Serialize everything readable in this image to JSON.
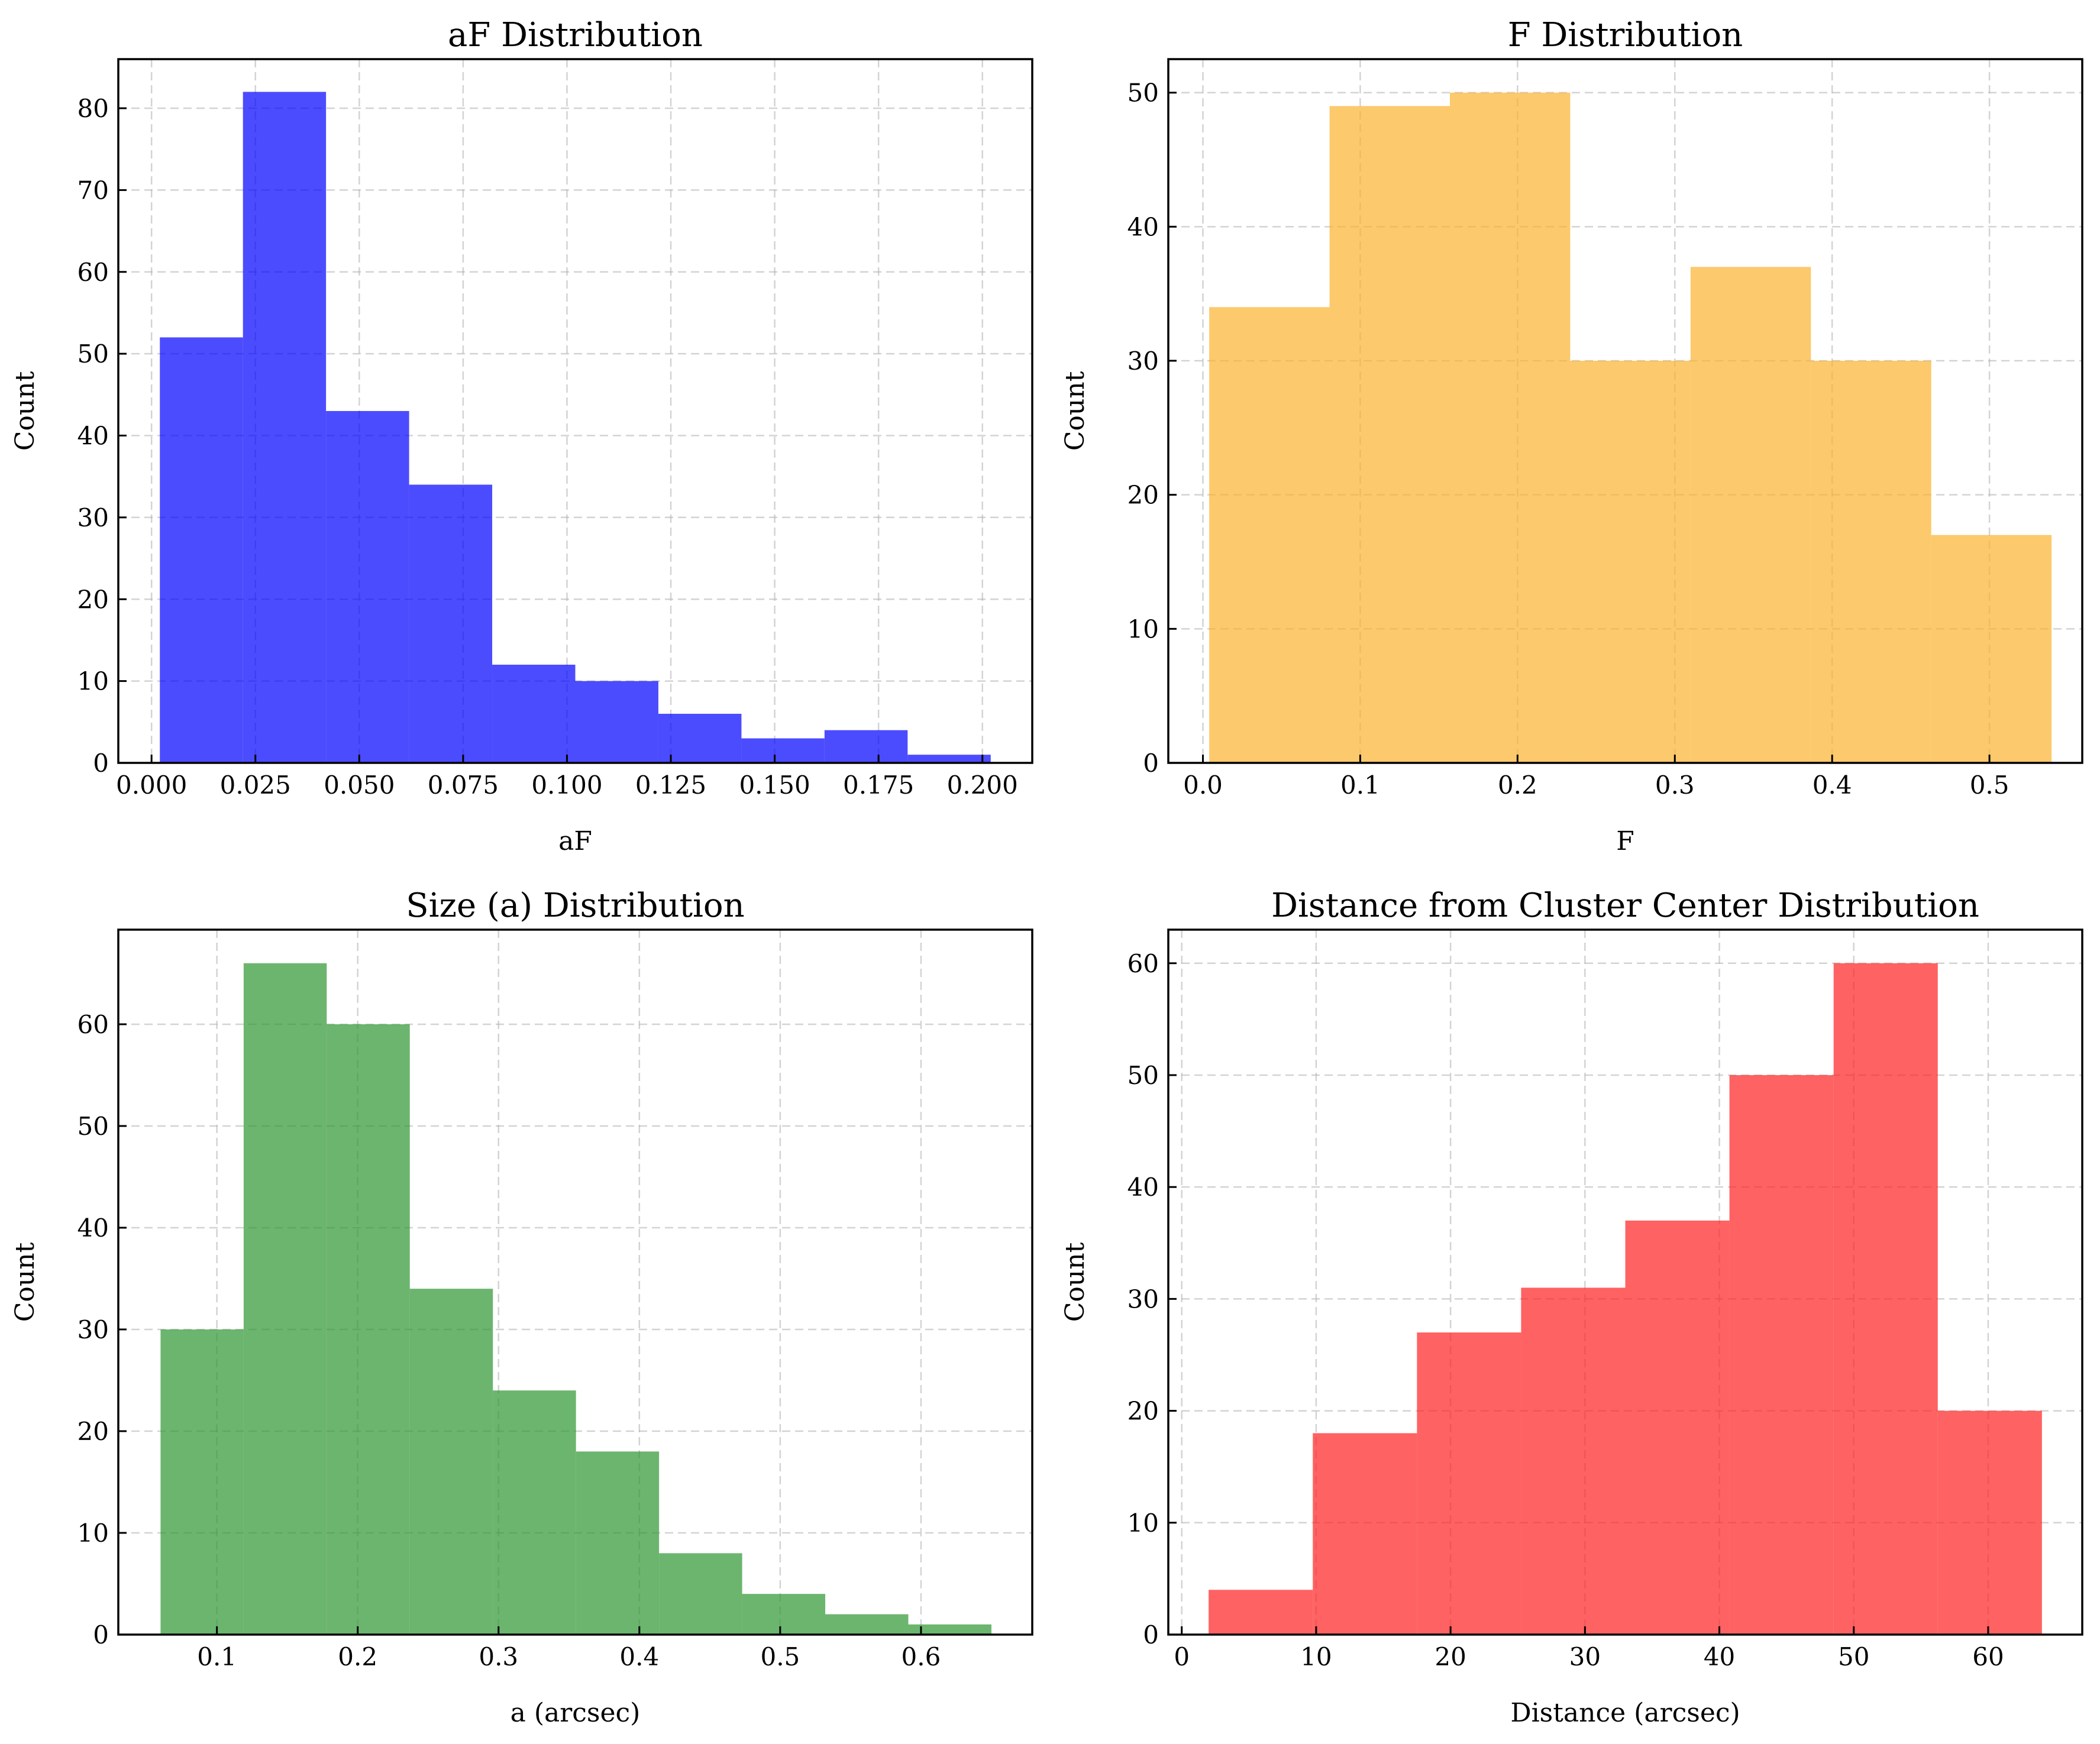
{
  "chart_data": [
    {
      "type": "bar",
      "title": "aF Distribution",
      "xlabel": "aF",
      "ylabel": "Count",
      "color": "#0000ff",
      "bin_edges": [
        0.002,
        0.022,
        0.042,
        0.062,
        0.082,
        0.102,
        0.122,
        0.142,
        0.162,
        0.182,
        0.202
      ],
      "values": [
        52,
        82,
        43,
        34,
        12,
        10,
        6,
        3,
        4,
        1
      ],
      "xlim": [
        -0.008,
        0.212
      ],
      "ylim": [
        0,
        86
      ],
      "xticks": [
        0.0,
        0.025,
        0.05,
        0.075,
        0.1,
        0.125,
        0.15,
        0.175,
        0.2
      ],
      "xtick_labels": [
        "0.000",
        "0.025",
        "0.050",
        "0.075",
        "0.100",
        "0.125",
        "0.150",
        "0.175",
        "0.200"
      ],
      "yticks": [
        0,
        10,
        20,
        30,
        40,
        50,
        60,
        70,
        80
      ],
      "ytick_labels": [
        "0",
        "10",
        "20",
        "30",
        "40",
        "50",
        "60",
        "70",
        "80"
      ],
      "grid": true
    },
    {
      "type": "bar",
      "title": "F Distribution",
      "xlabel": "F",
      "ylabel": "Count",
      "color": "#fbb22e",
      "bin_edges": [
        0.004,
        0.0805,
        0.157,
        0.2335,
        0.31,
        0.3865,
        0.463,
        0.5395
      ],
      "values": [
        34,
        49,
        50,
        30,
        37,
        30,
        17
      ],
      "xlim": [
        -0.022,
        0.559
      ],
      "ylim": [
        0,
        52.5
      ],
      "xticks": [
        0.0,
        0.1,
        0.2,
        0.3,
        0.4,
        0.5
      ],
      "xtick_labels": [
        "0.0",
        "0.1",
        "0.2",
        "0.3",
        "0.4",
        "0.5"
      ],
      "yticks": [
        0,
        10,
        20,
        30,
        40,
        50
      ],
      "ytick_labels": [
        "0",
        "10",
        "20",
        "30",
        "40",
        "50"
      ],
      "grid": true
    },
    {
      "type": "bar",
      "title": "Size (a) Distribution",
      "xlabel": "a (arcsec)",
      "ylabel": "Count",
      "color": "#2e9630",
      "bin_edges": [
        0.06,
        0.119,
        0.178,
        0.237,
        0.296,
        0.355,
        0.414,
        0.473,
        0.532,
        0.591,
        0.65
      ],
      "values": [
        30,
        66,
        60,
        34,
        24,
        18,
        8,
        4,
        2,
        1
      ],
      "xlim": [
        0.03,
        0.679
      ],
      "ylim": [
        0,
        69.3
      ],
      "xticks": [
        0.1,
        0.2,
        0.3,
        0.4,
        0.5,
        0.6
      ],
      "xtick_labels": [
        "0.1",
        "0.2",
        "0.3",
        "0.4",
        "0.5",
        "0.6"
      ],
      "yticks": [
        0,
        10,
        20,
        30,
        40,
        50,
        60
      ],
      "ytick_labels": [
        "0",
        "10",
        "20",
        "30",
        "40",
        "50",
        "60"
      ],
      "grid": true
    },
    {
      "type": "bar",
      "title": "Distance from Cluster Center Distribution",
      "xlabel": "Distance (arcsec)",
      "ylabel": "Count",
      "color": "#ff2020",
      "bin_edges": [
        2,
        9.75,
        17.5,
        25.25,
        33,
        40.75,
        48.5,
        56.25,
        64
      ],
      "values": [
        4,
        18,
        27,
        31,
        37,
        50,
        60,
        20
      ],
      "xlim": [
        -1.0,
        67.0
      ],
      "ylim": [
        0,
        63
      ],
      "xticks": [
        0,
        10,
        20,
        30,
        40,
        50,
        60
      ],
      "xtick_labels": [
        "0",
        "10",
        "20",
        "30",
        "40",
        "50",
        "60"
      ],
      "yticks": [
        0,
        10,
        20,
        30,
        40,
        50,
        60
      ],
      "ytick_labels": [
        "0",
        "10",
        "20",
        "30",
        "40",
        "50",
        "60"
      ],
      "grid": true
    }
  ]
}
